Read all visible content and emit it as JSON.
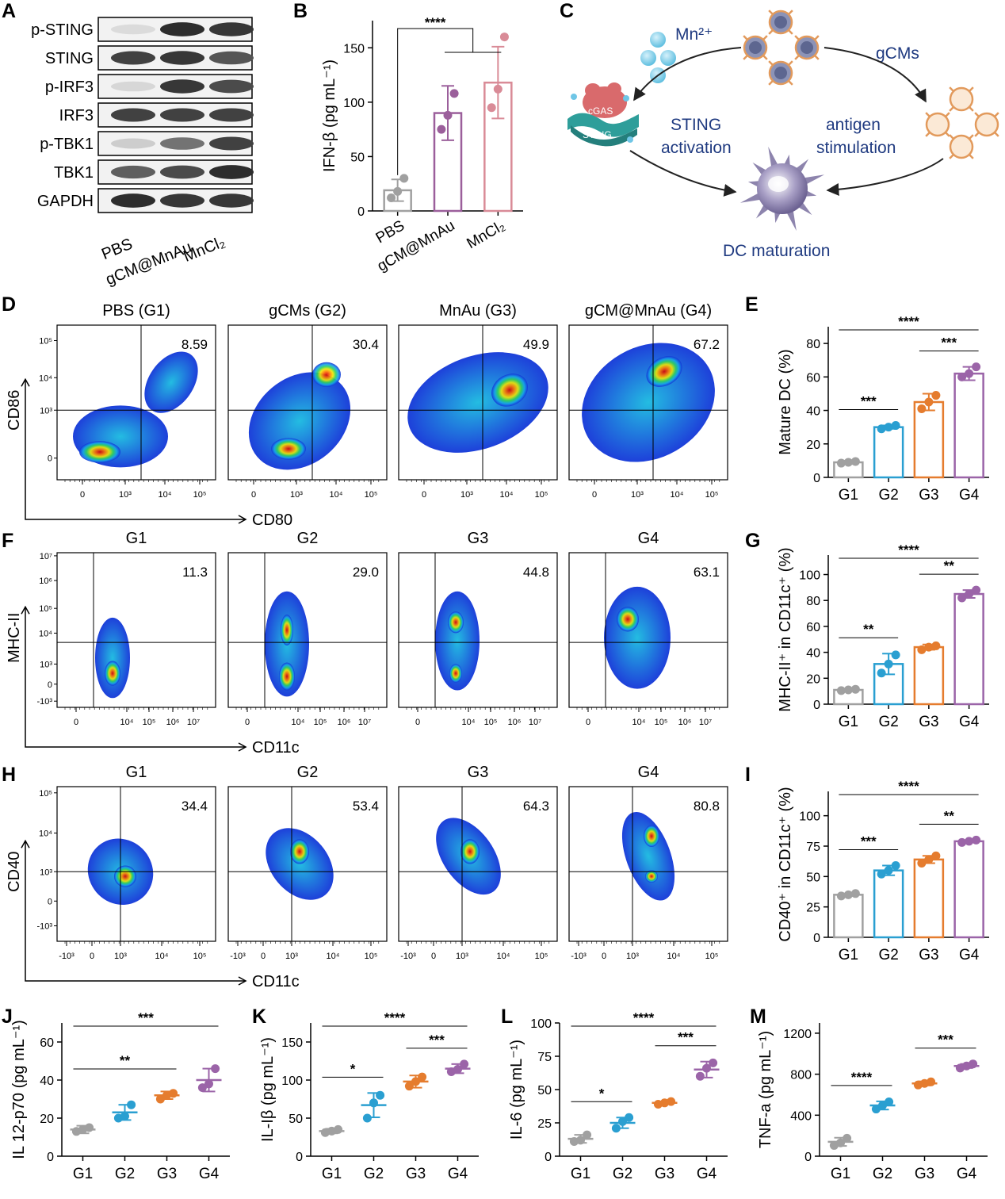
{
  "panels": {
    "A": {
      "letter": "A",
      "blots": [
        "p-STING",
        "STING",
        "p-IRF3",
        "IRF3",
        "p-TBK1",
        "TBK1",
        "GAPDH"
      ],
      "lanes": [
        "PBS",
        "gCM@MnAu",
        "MnCl₂"
      ]
    },
    "B": {
      "letter": "B"
    },
    "C": {
      "letter": "C",
      "mn_label": "Mn²⁺",
      "gcms_label": "gCMs",
      "cgas_label": "cGAS",
      "sting_label": "STING",
      "left_text": [
        "STING",
        "activation"
      ],
      "right_text": [
        "antigen",
        "stimulation"
      ],
      "bottom_text": "DC maturation"
    },
    "D": {
      "letter": "D",
      "xlabel": "CD80",
      "ylabel": "CD86",
      "titles": [
        "PBS (G1)",
        "gCMs (G2)",
        "MnAu (G3)",
        "gCM@MnAu (G4)"
      ],
      "percents": [
        "8.59",
        "30.4",
        "49.9",
        "67.2"
      ],
      "yticks": [
        "10⁵",
        "10⁴",
        "10³",
        "0"
      ],
      "xticks": [
        "0",
        "10³",
        "10⁴",
        "10⁵"
      ]
    },
    "E": {
      "letter": "E"
    },
    "F": {
      "letter": "F",
      "xlabel": "CD11c",
      "ylabel": "MHC-II",
      "titles": [
        "G1",
        "G2",
        "G3",
        "G4"
      ],
      "percents": [
        "11.3",
        "29.0",
        "44.8",
        "63.1"
      ],
      "yticks": [
        "10⁷",
        "10⁶",
        "10⁵",
        "10⁴",
        "10³",
        "0",
        "-10³"
      ],
      "xticks": [
        "0",
        "10⁴",
        "10⁵",
        "10⁶",
        "10⁷"
      ]
    },
    "G": {
      "letter": "G"
    },
    "H": {
      "letter": "H",
      "xlabel": "CD11c",
      "ylabel": "CD40",
      "titles": [
        "G1",
        "G2",
        "G3",
        "G4"
      ],
      "percents": [
        "34.4",
        "53.4",
        "64.3",
        "80.8"
      ],
      "yticks": [
        "10⁵",
        "10⁴",
        "10³",
        "0",
        "-10³"
      ],
      "xticks": [
        "-10³",
        "0",
        "10³",
        "10⁴",
        "10⁵"
      ]
    },
    "I": {
      "letter": "I"
    },
    "J": {
      "letter": "J"
    },
    "K": {
      "letter": "K"
    },
    "L": {
      "letter": "L"
    },
    "M": {
      "letter": "M"
    }
  },
  "colors": {
    "gray": "#a0a0a0",
    "purple": "#9b5f9b",
    "pink": "#d98b97",
    "blue": "#2a9fd1",
    "orange": "#e57c2e",
    "violet": "#9b64a8",
    "diagram_text": "#1f3a80"
  },
  "chart_data": [
    {
      "id": "B",
      "type": "bar",
      "categories": [
        "PBS",
        "gCM@MnAu",
        "MnCl₂"
      ],
      "values": [
        19,
        90,
        118
      ],
      "errors": [
        10,
        25,
        33
      ],
      "points": [
        [
          12,
          18,
          30
        ],
        [
          75,
          88,
          108
        ],
        [
          95,
          112,
          160
        ]
      ],
      "ylabel": "IFN-β (pg mL⁻¹)",
      "ylim": [
        0,
        175
      ],
      "yticks": [
        0,
        50,
        100,
        150
      ],
      "colors": [
        "gray",
        "purple",
        "pink"
      ],
      "significance": [
        {
          "label": "****",
          "from": 0,
          "to": [
            1,
            2
          ]
        }
      ]
    },
    {
      "id": "E",
      "type": "bar",
      "categories": [
        "G1",
        "G2",
        "G3",
        "G4"
      ],
      "values": [
        9,
        30,
        45,
        62
      ],
      "errors": [
        1,
        1,
        5,
        4
      ],
      "points": [
        [
          8.5,
          9,
          9.5
        ],
        [
          29,
          30,
          31
        ],
        [
          41,
          45,
          49
        ],
        [
          60,
          62,
          66
        ]
      ],
      "ylabel": "Mature DC (%)",
      "ylim": [
        0,
        90
      ],
      "yticks": [
        0,
        20,
        40,
        60,
        80
      ],
      "colors": [
        "gray",
        "blue",
        "orange",
        "violet"
      ],
      "significance": [
        {
          "label": "***",
          "from": 0,
          "to": 1
        },
        {
          "label": "***",
          "from": 2,
          "to": 3
        },
        {
          "label": "****",
          "from": 0,
          "to": 3
        }
      ]
    },
    {
      "id": "G",
      "type": "bar",
      "categories": [
        "G1",
        "G2",
        "G3",
        "G4"
      ],
      "values": [
        11,
        31,
        44,
        85
      ],
      "errors": [
        1,
        8,
        2,
        3
      ],
      "points": [
        [
          10.5,
          11,
          11.5
        ],
        [
          24,
          31,
          38
        ],
        [
          42,
          44,
          45
        ],
        [
          82,
          85,
          88
        ]
      ],
      "ylabel": "MHC-II⁺ in CD11c⁺ (%)",
      "ylim": [
        0,
        115
      ],
      "yticks": [
        0,
        20,
        40,
        60,
        80,
        100
      ],
      "colors": [
        "gray",
        "blue",
        "orange",
        "violet"
      ],
      "significance": [
        {
          "label": "**",
          "from": 0,
          "to": 1
        },
        {
          "label": "**",
          "from": 2,
          "to": 3
        },
        {
          "label": "****",
          "from": 0,
          "to": 3
        }
      ]
    },
    {
      "id": "I",
      "type": "bar",
      "categories": [
        "G1",
        "G2",
        "G3",
        "G4"
      ],
      "values": [
        35,
        55,
        64,
        79
      ],
      "errors": [
        1,
        4,
        3,
        1
      ],
      "points": [
        [
          34,
          35,
          36
        ],
        [
          52,
          55,
          59
        ],
        [
          61,
          64,
          67
        ],
        [
          78,
          79,
          80
        ]
      ],
      "ylabel": "CD40⁺ in CD11c⁺ (%)",
      "ylim": [
        0,
        120
      ],
      "yticks": [
        0,
        25,
        50,
        75,
        100
      ],
      "colors": [
        "gray",
        "blue",
        "orange",
        "violet"
      ],
      "significance": [
        {
          "label": "***",
          "from": 0,
          "to": 1
        },
        {
          "label": "**",
          "from": 2,
          "to": 3
        },
        {
          "label": "****",
          "from": 0,
          "to": 3
        }
      ]
    },
    {
      "id": "J",
      "type": "scatter",
      "categories": [
        "G1",
        "G2",
        "G3",
        "G4"
      ],
      "values": [
        14,
        23,
        32,
        40
      ],
      "errors": [
        2,
        4,
        2,
        6
      ],
      "points": [
        [
          13,
          14,
          15
        ],
        [
          20,
          21,
          27
        ],
        [
          30,
          32,
          33
        ],
        [
          36,
          38,
          46
        ]
      ],
      "ylabel": "IL 12-p70 (pg mL⁻¹)",
      "ylim": [
        0,
        70
      ],
      "yticks": [
        0,
        20,
        40,
        60
      ],
      "colors": [
        "gray",
        "blue",
        "orange",
        "violet"
      ],
      "significance": [
        {
          "label": "**",
          "from": 0,
          "to": 2
        },
        {
          "label": "***",
          "from": 0,
          "to": 3
        }
      ]
    },
    {
      "id": "K",
      "type": "scatter",
      "categories": [
        "G1",
        "G2",
        "G3",
        "G4"
      ],
      "values": [
        33,
        67,
        98,
        115
      ],
      "errors": [
        3,
        16,
        8,
        6
      ],
      "points": [
        [
          31,
          33,
          35
        ],
        [
          50,
          70,
          80
        ],
        [
          92,
          98,
          104
        ],
        [
          111,
          114,
          121
        ]
      ],
      "ylabel": "IL-Iβ (pg mL⁻¹)",
      "ylim": [
        0,
        175
      ],
      "yticks": [
        0,
        50,
        100,
        150
      ],
      "colors": [
        "gray",
        "blue",
        "orange",
        "violet"
      ],
      "significance": [
        {
          "label": "*",
          "from": 0,
          "to": 1
        },
        {
          "label": "***",
          "from": 2,
          "to": 3
        },
        {
          "label": "****",
          "from": 0,
          "to": 3
        }
      ]
    },
    {
      "id": "L",
      "type": "scatter",
      "categories": [
        "G1",
        "G2",
        "G3",
        "G4"
      ],
      "values": [
        13,
        25,
        40,
        65
      ],
      "errors": [
        3,
        4,
        1,
        6
      ],
      "points": [
        [
          11,
          12,
          16
        ],
        [
          21,
          26,
          29
        ],
        [
          39,
          40,
          41
        ],
        [
          60,
          66,
          70
        ]
      ],
      "ylabel": "IL-6 (pg mL⁻¹)",
      "ylim": [
        0,
        100
      ],
      "yticks": [
        0,
        25,
        50,
        75,
        100
      ],
      "colors": [
        "gray",
        "blue",
        "orange",
        "violet"
      ],
      "significance": [
        {
          "label": "*",
          "from": 0,
          "to": 1
        },
        {
          "label": "***",
          "from": 2,
          "to": 3
        },
        {
          "label": "****",
          "from": 0,
          "to": 3
        }
      ]
    },
    {
      "id": "M",
      "type": "scatter",
      "categories": [
        "G1",
        "G2",
        "G3",
        "G4"
      ],
      "values": [
        140,
        495,
        710,
        880
      ],
      "errors": [
        40,
        40,
        20,
        20
      ],
      "points": [
        [
          105,
          130,
          175
        ],
        [
          460,
          495,
          530
        ],
        [
          695,
          710,
          725
        ],
        [
          860,
          880,
          900
        ]
      ],
      "ylabel": "TNF-a (pg mL⁻¹)",
      "ylim": [
        0,
        1300
      ],
      "yticks": [
        0,
        400,
        800,
        1200
      ],
      "colors": [
        "gray",
        "blue",
        "orange",
        "violet"
      ],
      "significance": [
        {
          "label": "****",
          "from": 0,
          "to": 1
        },
        {
          "label": "***",
          "from": 2,
          "to": 3
        }
      ]
    }
  ]
}
